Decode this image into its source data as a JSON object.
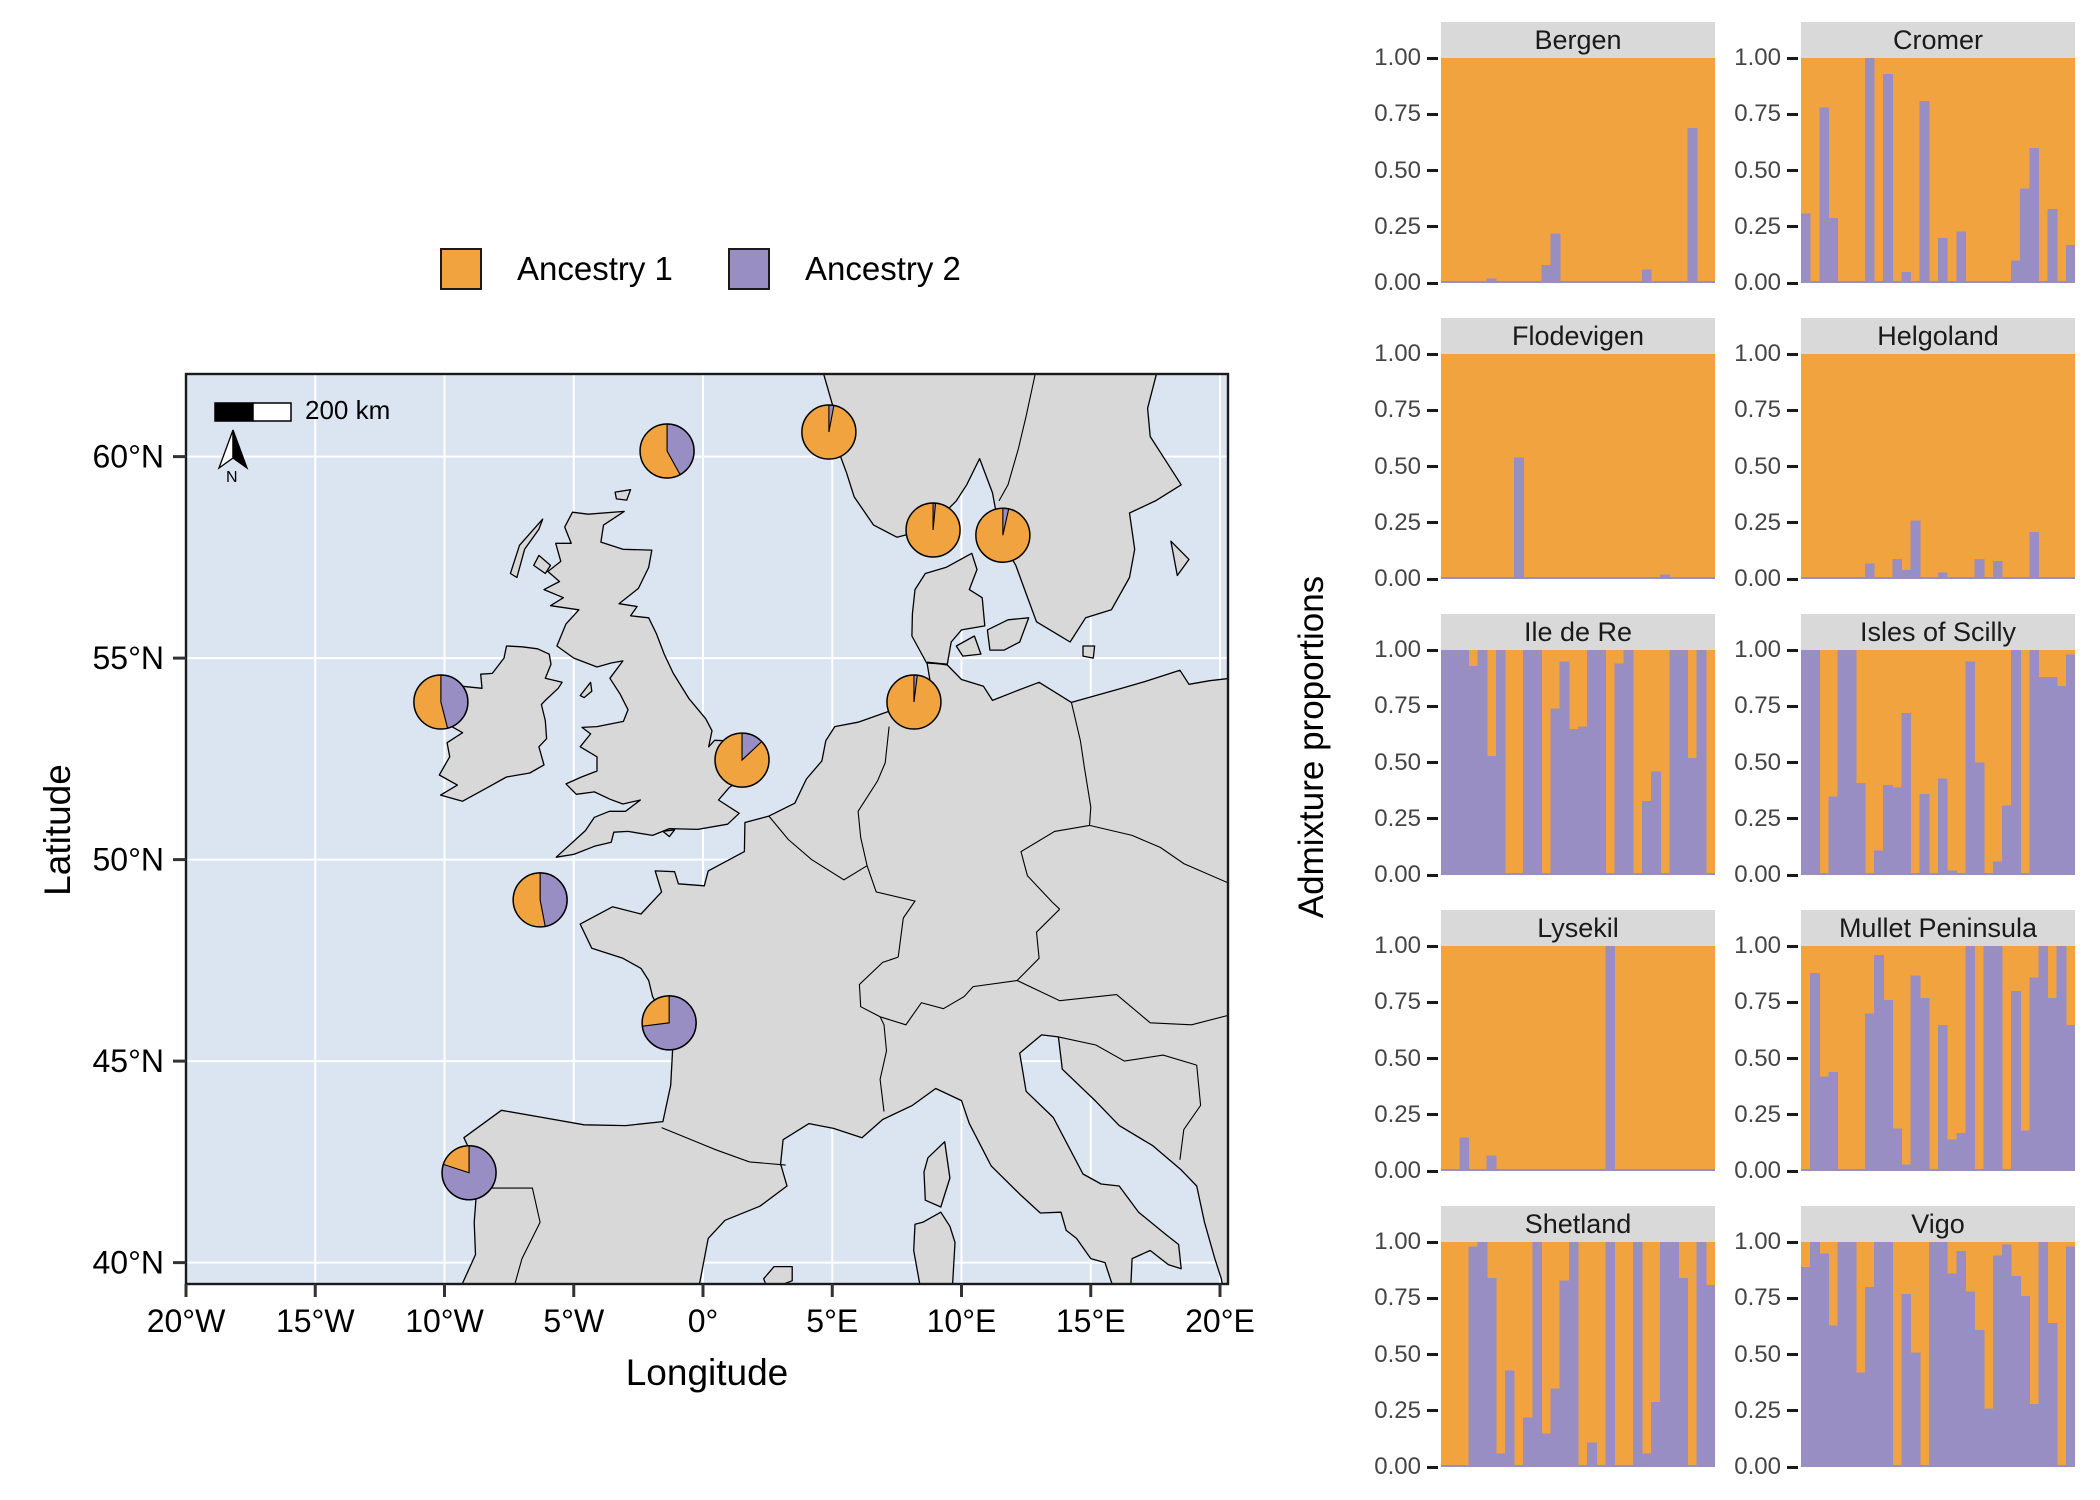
{
  "colors": {
    "ancestry1": "#F1A340",
    "ancestry2": "#998EC3",
    "ocean": "#DAE5F1",
    "land": "#D8D8D8",
    "coastline": "#000000",
    "gridline": "#FFFFFF",
    "strip_bg": "#D9D9D9",
    "panel_tick_text": "#444444",
    "axis_text": "#000000"
  },
  "legend": {
    "items": [
      {
        "label": "Ancestry 1",
        "color": "#F1A340"
      },
      {
        "label": "Ancestry 2",
        "color": "#998EC3"
      }
    ]
  },
  "map": {
    "xlabel": "Longitude",
    "ylabel": "Latitude",
    "x_ticks": [
      {
        "label": "20°W",
        "lon": -20
      },
      {
        "label": "15°W",
        "lon": -15
      },
      {
        "label": "10°W",
        "lon": -10
      },
      {
        "label": "5°W",
        "lon": -5
      },
      {
        "label": "0°",
        "lon": 0
      },
      {
        "label": "5°E",
        "lon": 5
      },
      {
        "label": "10°E",
        "lon": 10
      },
      {
        "label": "15°E",
        "lon": 15
      },
      {
        "label": "20°E",
        "lon": 20
      }
    ],
    "y_ticks": [
      {
        "label": "60°N",
        "lat": 60
      },
      {
        "label": "55°N",
        "lat": 55
      },
      {
        "label": "50°N",
        "lat": 50
      },
      {
        "label": "45°N",
        "lat": 45
      },
      {
        "label": "40°N",
        "lat": 40
      }
    ],
    "scale_bar_label": "200 km",
    "north_arrow_label": "N"
  },
  "charts": {
    "ylabel": "Admixture proportions",
    "y_tick_labels": [
      "1.00",
      "0.75",
      "0.50",
      "0.25",
      "0.00"
    ]
  },
  "chart_data": [
    {
      "type": "pie",
      "name": "site-admixture-pies",
      "legend_position": "top-left",
      "unit": "proportion",
      "sites": [
        {
          "name": "Shetland",
          "lon": -1.39,
          "lat": 60.14,
          "ancestry1": 0.58,
          "ancestry2": 0.42
        },
        {
          "name": "Bergen",
          "lon": 4.87,
          "lat": 60.61,
          "ancestry1": 0.97,
          "ancestry2": 0.03
        },
        {
          "name": "Flodevigen",
          "lon": 8.9,
          "lat": 58.18,
          "ancestry1": 0.985,
          "ancestry2": 0.015
        },
        {
          "name": "Lysekil",
          "lon": 11.6,
          "lat": 58.05,
          "ancestry1": 0.965,
          "ancestry2": 0.035
        },
        {
          "name": "Mullet Peninsula",
          "lon": -10.14,
          "lat": 53.91,
          "ancestry1": 0.54,
          "ancestry2": 0.46
        },
        {
          "name": "Helgoland",
          "lon": 8.16,
          "lat": 53.91,
          "ancestry1": 0.98,
          "ancestry2": 0.02
        },
        {
          "name": "Cromer",
          "lon": 1.51,
          "lat": 52.47,
          "ancestry1": 0.87,
          "ancestry2": 0.13
        },
        {
          "name": "Isles of Scilly",
          "lon": -6.3,
          "lat": 49.0,
          "ancestry1": 0.53,
          "ancestry2": 0.47
        },
        {
          "name": "Ile de Re",
          "lon": -1.31,
          "lat": 45.95,
          "ancestry1": 0.27,
          "ancestry2": 0.73
        },
        {
          "name": "Vigo",
          "lon": -9.05,
          "lat": 42.23,
          "ancestry1": 0.2,
          "ancestry2": 0.8
        }
      ]
    },
    {
      "type": "bar",
      "name": "admixture-structure-panels",
      "stacked": true,
      "ylim": [
        0,
        1
      ],
      "y_ticks": [
        1.0,
        0.75,
        0.5,
        0.25,
        0.0
      ],
      "series_colors": {
        "ancestry1": "#F1A340",
        "ancestry2": "#998EC3"
      },
      "panels": [
        {
          "name": "Bergen",
          "ancestry2": [
            0,
            0,
            0,
            0,
            0,
            0.02,
            0,
            0,
            0,
            0,
            0,
            0.08,
            0.22,
            0,
            0,
            0,
            0,
            0,
            0,
            0,
            0,
            0,
            0.06,
            0,
            0,
            0,
            0,
            0.69,
            0,
            0
          ]
        },
        {
          "name": "Cromer",
          "ancestry2": [
            0.31,
            0,
            0.78,
            0.29,
            0,
            0,
            0,
            1,
            0,
            0.93,
            0,
            0.05,
            0,
            0.81,
            0,
            0.2,
            0,
            0.23,
            0,
            0,
            0,
            0,
            0.01,
            0.1,
            0.42,
            0.6,
            0,
            0.33,
            0,
            0.17
          ]
        },
        {
          "name": "Flodevigen",
          "ancestry2": [
            0,
            0,
            0,
            0,
            0,
            0,
            0,
            0,
            0.54,
            0,
            0,
            0,
            0,
            0,
            0,
            0,
            0,
            0,
            0,
            0,
            0,
            0,
            0,
            0,
            0.02,
            0,
            0,
            0,
            0,
            0
          ]
        },
        {
          "name": "Helgoland",
          "ancestry2": [
            0,
            0,
            0,
            0,
            0,
            0,
            0,
            0.07,
            0,
            0,
            0.09,
            0.04,
            0.26,
            0,
            0,
            0.03,
            0,
            0,
            0,
            0.09,
            0,
            0.08,
            0,
            0,
            0,
            0.21,
            0,
            0,
            0,
            0
          ]
        },
        {
          "name": "Ile de Re",
          "ancestry2": [
            1,
            1,
            1,
            0.93,
            1,
            0.53,
            1,
            0,
            0,
            1,
            1,
            0,
            0.74,
            0.95,
            0.65,
            0.66,
            1,
            1,
            0,
            0.94,
            1,
            0,
            0.33,
            0.46,
            0,
            1,
            1,
            0.52,
            1,
            0
          ]
        },
        {
          "name": "Isles of Scilly",
          "ancestry2": [
            1,
            1,
            0,
            0.35,
            1,
            1,
            0.41,
            0,
            0.11,
            0.4,
            0.39,
            0.72,
            0,
            0.36,
            0,
            0.43,
            0.02,
            0,
            0.95,
            0.5,
            0,
            0.06,
            0.31,
            1,
            0,
            1,
            0.88,
            0.88,
            0.84,
            0.98
          ]
        },
        {
          "name": "Lysekil",
          "ancestry2": [
            0,
            0,
            0.15,
            0.01,
            0,
            0.07,
            0,
            0,
            0,
            0,
            0,
            0,
            0,
            0,
            0,
            0,
            0,
            0,
            1,
            0,
            0,
            0,
            0,
            0,
            0,
            0,
            0,
            0,
            0,
            0
          ]
        },
        {
          "name": "Mullet Peninsula",
          "ancestry2": [
            0,
            0.88,
            0.42,
            0.44,
            0,
            0,
            0,
            0.7,
            0.96,
            0.76,
            0.19,
            0.03,
            0.87,
            0.77,
            0,
            0.65,
            0.14,
            0.17,
            1,
            0,
            1,
            1,
            0,
            0.8,
            0.18,
            0.86,
            1,
            0.77,
            1,
            0.65
          ]
        },
        {
          "name": "Shetland",
          "ancestry2": [
            0,
            0,
            0,
            0.98,
            1,
            0.84,
            0.06,
            0.43,
            0,
            0.22,
            1,
            0.15,
            0.35,
            0.83,
            1,
            0.01,
            0.11,
            0,
            1,
            0,
            0,
            1,
            0.06,
            0.29,
            1,
            1,
            0.84,
            0,
            1,
            0.81
          ]
        },
        {
          "name": "Vigo",
          "ancestry2": [
            0.89,
            1,
            0.95,
            0.63,
            1,
            1,
            0.42,
            0.8,
            1,
            1,
            0,
            0.77,
            0.51,
            0,
            1,
            1,
            0.86,
            0.96,
            0.78,
            0.61,
            0.26,
            0.94,
            0.99,
            0.85,
            0.76,
            0.28,
            1,
            0.64,
            0,
            0.98
          ]
        }
      ]
    }
  ]
}
